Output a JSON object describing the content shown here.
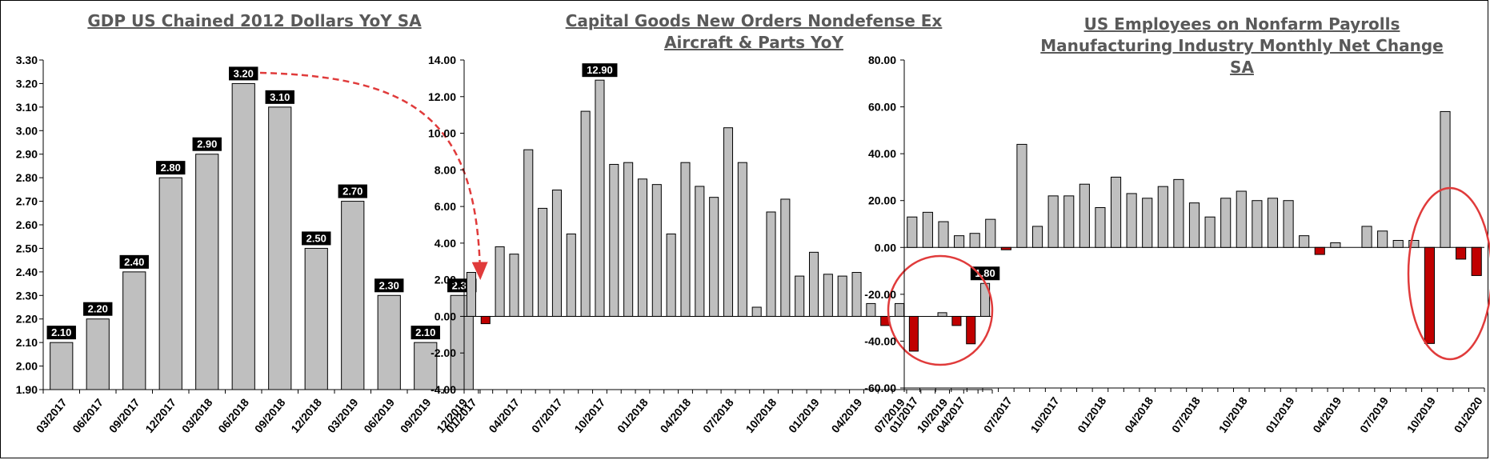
{
  "colors": {
    "bar_positive": "#bfbfbf",
    "bar_negative": "#c00000",
    "bar_stroke": "#000000",
    "title": "#595959",
    "highlight": "#e03b3b",
    "label_bg": "#000000",
    "label_text": "#ffffff"
  },
  "chart_data": [
    {
      "type": "bar",
      "title": "GDP US Chained 2012 Dollars YoY SA",
      "categories": [
        "03/2017",
        "06/2017",
        "09/2017",
        "12/2017",
        "03/2018",
        "06/2018",
        "09/2018",
        "12/2018",
        "03/2019",
        "06/2019",
        "09/2019",
        "12/2019"
      ],
      "values": [
        2.1,
        2.2,
        2.4,
        2.8,
        2.9,
        3.2,
        3.1,
        2.5,
        2.7,
        2.3,
        2.1,
        2.3
      ],
      "data_labels": [
        "2.10",
        "2.20",
        "2.40",
        "2.80",
        "2.90",
        "3.20",
        "3.10",
        "2.50",
        "2.70",
        "2.30",
        "2.10",
        "2.30"
      ],
      "ylim": [
        1.9,
        3.3
      ],
      "yticks": [
        1.9,
        2.0,
        2.1,
        2.2,
        2.3,
        2.4,
        2.5,
        2.6,
        2.7,
        2.8,
        2.9,
        3.0,
        3.1,
        3.2,
        3.3
      ],
      "ytick_labels": [
        "1.90",
        "2.00",
        "2.10",
        "2.20",
        "2.30",
        "2.40",
        "2.50",
        "2.60",
        "2.70",
        "2.80",
        "2.90",
        "3.00",
        "3.10",
        "3.20",
        "3.30"
      ],
      "annotation": "dashed arrow from 06/2018 bar (3.20) to 12/2019 bar (2.30)"
    },
    {
      "type": "bar",
      "title": "Capital Goods New Orders Nondefense Ex Aircraft & Parts YoY",
      "x_tick_labels": [
        "01/2017",
        "04/2017",
        "07/2017",
        "10/2017",
        "01/2018",
        "04/2018",
        "07/2018",
        "10/2018",
        "01/2019",
        "04/2019",
        "07/2019",
        "10/2019"
      ],
      "values": [
        2.4,
        -0.4,
        3.8,
        3.4,
        9.1,
        5.9,
        6.9,
        4.5,
        11.2,
        12.9,
        8.3,
        8.4,
        7.5,
        7.2,
        4.5,
        8.4,
        7.1,
        6.5,
        10.3,
        8.4,
        0.5,
        5.7,
        6.4,
        2.2,
        3.5,
        2.3,
        2.2,
        2.4,
        0.7,
        -0.5,
        0.7,
        -1.9,
        0.0,
        0.2,
        -0.5,
        -1.5,
        1.8
      ],
      "data_labels": [
        {
          "index": 9,
          "text": "12.90"
        },
        {
          "index": 36,
          "text": "1.80"
        }
      ],
      "ylim": [
        -4,
        14
      ],
      "yticks": [
        -4,
        -2,
        0,
        2,
        4,
        6,
        8,
        10,
        12,
        14
      ],
      "ytick_labels": [
        "-4.00",
        "-2.00",
        "0.00",
        "2.00",
        "4.00",
        "6.00",
        "8.00",
        "10.00",
        "12.00",
        "14.00"
      ],
      "annotation": "red circle around the last 8 bars"
    },
    {
      "type": "bar",
      "title": "US Employees on Nonfarm Payrolls Manufacturing Industry Monthly Net Change SA",
      "x_tick_labels": [
        "01/2017",
        "04/2017",
        "07/2017",
        "10/2017",
        "01/2018",
        "04/2018",
        "07/2018",
        "10/2018",
        "01/2019",
        "04/2019",
        "07/2019",
        "10/2019",
        "01/2020"
      ],
      "values": [
        13,
        15,
        11,
        5,
        6,
        12,
        -1,
        44,
        9,
        22,
        22,
        27,
        17,
        30,
        23,
        21,
        26,
        29,
        19,
        13,
        21,
        24,
        20,
        21,
        20,
        5,
        -3,
        2,
        0,
        9,
        7,
        3,
        3,
        -41,
        58,
        -5,
        -12
      ],
      "ylim": [
        -60,
        80
      ],
      "yticks": [
        -60,
        -40,
        -20,
        0,
        20,
        40,
        60,
        80
      ],
      "ytick_labels": [
        "-60.00",
        "-40.00",
        "-20.00",
        "0.00",
        "20.00",
        "40.00",
        "60.00",
        "80.00"
      ],
      "annotation": "red ellipse around the Oct 2019 to Jan 2020 bars"
    }
  ]
}
